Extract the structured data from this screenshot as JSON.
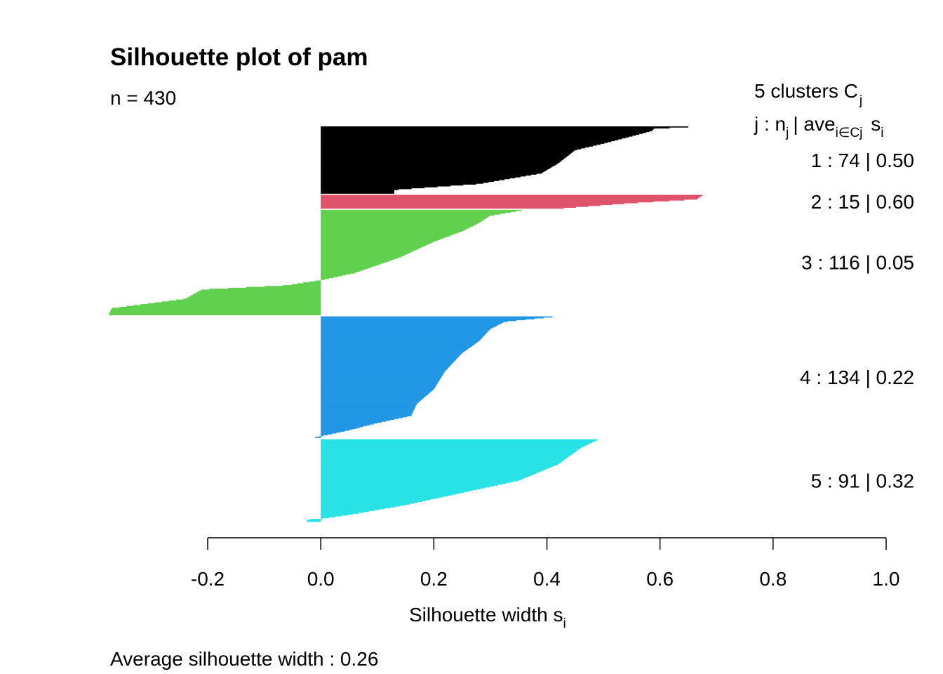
{
  "chart_data": {
    "type": "bar",
    "orientation": "horizontal",
    "title": "Silhouette plot of pam",
    "n_label": "n = 430",
    "xlabel": "Silhouette width s",
    "xlabel_sub": "i",
    "footer": "Average silhouette width :  0.26",
    "xlim": [
      -0.2,
      1.0
    ],
    "x_ticks": [
      "-0.2",
      "0.0",
      "0.2",
      "0.4",
      "0.6",
      "0.8",
      "1.0"
    ],
    "x_tick_values": [
      -0.2,
      0.0,
      0.2,
      0.4,
      0.6,
      0.8,
      1.0
    ],
    "legend": {
      "header_line1": "5  clusters  C",
      "header_line1_sub": "j",
      "header_line2_j": "j :  n",
      "header_line2_j_sub": "j",
      "header_line2_ave": "| ave",
      "header_line2_ave_sub": "i∈Cj",
      "header_line2_s": "s",
      "header_line2_s_sub": "i"
    },
    "clusters": [
      {
        "id": 1,
        "n": 74,
        "avg": 0.5,
        "label": "1 :   74  |  0.50",
        "color": "#000000",
        "profile": [
          [
            0,
            0.65
          ],
          [
            0.025,
            0.59
          ],
          [
            0.06,
            0.585
          ],
          [
            0.14,
            0.55
          ],
          [
            0.25,
            0.5
          ],
          [
            0.35,
            0.45
          ],
          [
            0.55,
            0.42
          ],
          [
            0.7,
            0.39
          ],
          [
            0.86,
            0.28
          ],
          [
            0.95,
            0.13
          ],
          [
            1,
            0.13
          ]
        ]
      },
      {
        "id": 2,
        "n": 15,
        "avg": 0.6,
        "label": "2 :   15  |  0.60",
        "color": "#DF536B",
        "profile": [
          [
            0,
            0.675
          ],
          [
            0.3,
            0.665
          ],
          [
            0.6,
            0.55
          ],
          [
            1,
            0.43
          ]
        ]
      },
      {
        "id": 3,
        "n": 116,
        "avg": 0.05,
        "label": "3 :   116  |  0.05",
        "color": "#61D04F",
        "profile": [
          [
            0,
            0.355
          ],
          [
            0.05,
            0.3
          ],
          [
            0.12,
            0.28
          ],
          [
            0.2,
            0.25
          ],
          [
            0.3,
            0.2
          ],
          [
            0.45,
            0.14
          ],
          [
            0.6,
            0.06
          ],
          [
            0.67,
            0.0
          ],
          [
            0.72,
            -0.06
          ],
          [
            0.76,
            -0.21
          ],
          [
            0.85,
            -0.24
          ],
          [
            0.94,
            -0.37
          ],
          [
            1,
            -0.375
          ]
        ]
      },
      {
        "id": 4,
        "n": 134,
        "avg": 0.22,
        "label": "4 :   134  |  0.22",
        "color": "#2297E6",
        "profile": [
          [
            0,
            0.41
          ],
          [
            0.04,
            0.325
          ],
          [
            0.1,
            0.3
          ],
          [
            0.2,
            0.28
          ],
          [
            0.3,
            0.25
          ],
          [
            0.45,
            0.22
          ],
          [
            0.6,
            0.2
          ],
          [
            0.72,
            0.17
          ],
          [
            0.82,
            0.16
          ],
          [
            0.88,
            0.1
          ],
          [
            0.94,
            0.05
          ],
          [
            0.99,
            0.0
          ],
          [
            1,
            -0.01
          ]
        ]
      },
      {
        "id": 5,
        "n": 91,
        "avg": 0.32,
        "label": "5 :   91  |  0.32",
        "color": "#28E2E5",
        "profile": [
          [
            0,
            0.49
          ],
          [
            0.1,
            0.46
          ],
          [
            0.3,
            0.42
          ],
          [
            0.5,
            0.35
          ],
          [
            0.65,
            0.25
          ],
          [
            0.8,
            0.15
          ],
          [
            0.92,
            0.05
          ],
          [
            0.97,
            0.0
          ],
          [
            0.98,
            -0.025
          ],
          [
            1,
            -0.025
          ]
        ]
      }
    ]
  }
}
